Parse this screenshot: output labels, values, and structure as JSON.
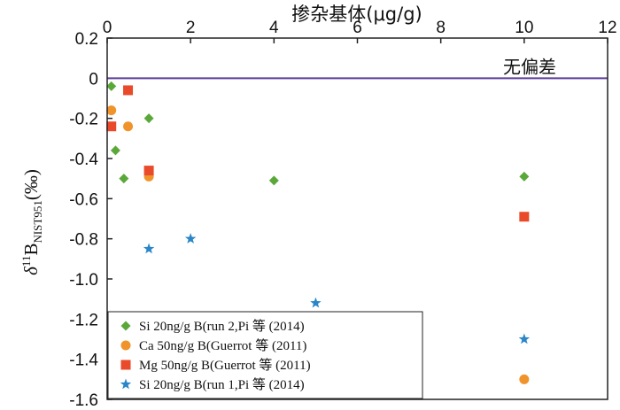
{
  "chart_data": {
    "type": "scatter",
    "xlabel": "掺杂基体(μg/g)",
    "ylabel": {
      "delta": "δ",
      "sup": "11",
      "main": "B",
      "sub": "NIST951",
      "unit": "(‰)"
    },
    "xlim": [
      0,
      12
    ],
    "ylim": [
      -1.6,
      0.2
    ],
    "xticks": [
      "0",
      "2",
      "4",
      "6",
      "8",
      "10",
      "12"
    ],
    "yticks": [
      "0.2",
      "0",
      "-0.2",
      "-0.4",
      "-0.6",
      "-0.8",
      "-1.0",
      "-1.2",
      "-1.4",
      "-1.6"
    ],
    "xtick_values": [
      0,
      2,
      4,
      6,
      8,
      10,
      12
    ],
    "ytick_values": [
      0.2,
      0,
      -0.2,
      -0.4,
      -0.6,
      -0.8,
      -1.0,
      -1.2,
      -1.4,
      -1.6
    ],
    "reference_line": {
      "y": 0,
      "label": "无偏差",
      "color": "#5b3f9e"
    },
    "legend_position": "bottom-left",
    "series": [
      {
        "name": "Si 20ng/g B(run 2,Pi 等 (2014)",
        "marker": "diamond",
        "color": "#5aa83a",
        "x": [
          0.1,
          0.2,
          0.4,
          1.0,
          4.0,
          10.0
        ],
        "y": [
          -0.04,
          -0.36,
          -0.5,
          -0.2,
          -0.51,
          -0.49
        ]
      },
      {
        "name": "Ca 50ng/g B(Guerrot 等 (2011)",
        "marker": "circle",
        "color": "#f0932b",
        "x": [
          0.1,
          0.5,
          1.0,
          10.0
        ],
        "y": [
          -0.16,
          -0.24,
          -0.49,
          -1.5
        ]
      },
      {
        "name": "Mg 50ng/g B(Guerrot 等 (2011)",
        "marker": "square",
        "color": "#e84a2a",
        "x": [
          0.1,
          0.5,
          1.0,
          10.0
        ],
        "y": [
          -0.24,
          -0.06,
          -0.46,
          -0.69
        ]
      },
      {
        "name": "Si 20ng/g B(run 1,Pi 等 (2014)",
        "marker": "star",
        "color": "#2a86c8",
        "x": [
          1.0,
          2.0,
          5.0,
          10.0
        ],
        "y": [
          -0.85,
          -0.8,
          -1.12,
          -1.3
        ]
      }
    ]
  }
}
